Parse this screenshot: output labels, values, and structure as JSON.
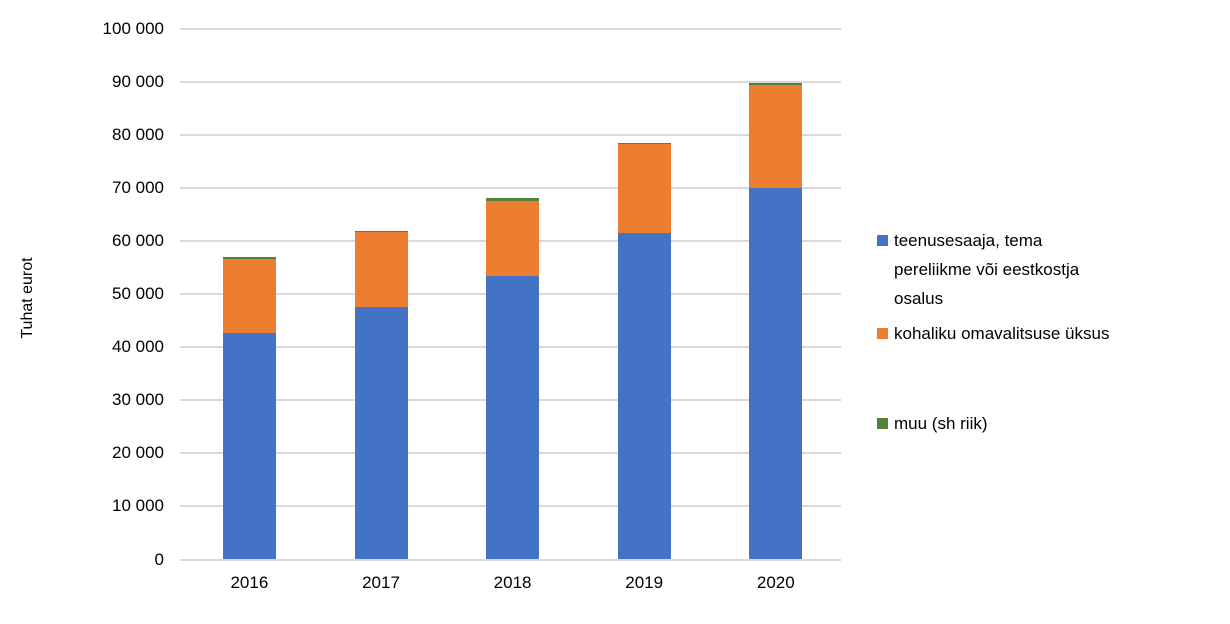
{
  "chart_data": {
    "type": "bar",
    "stacked": true,
    "title": "",
    "xlabel": "",
    "ylabel": "Tuhat eurot",
    "categories": [
      "2016",
      "2017",
      "2018",
      "2019",
      "2020"
    ],
    "series": [
      {
        "name": "teenusesaaja, tema pereliikme või eestkostja osalus",
        "color": "#4472C4",
        "values": [
          42600,
          47600,
          53300,
          61500,
          69900
        ]
      },
      {
        "name": "kohaliku omavalitsuse üksus",
        "color": "#ED7D31",
        "values": [
          14000,
          14000,
          14300,
          16700,
          19400
        ]
      },
      {
        "name": "muu (sh riik)",
        "color": "#548235",
        "values": [
          300,
          300,
          400,
          300,
          500
        ]
      }
    ],
    "ylim": [
      0,
      100000
    ],
    "ytick_step": 10000,
    "ytick_labels": [
      "0",
      "10 000",
      "20 000",
      "30 000",
      "40 000",
      "50 000",
      "60 000",
      "70 000",
      "80 000",
      "90 000",
      "100 000"
    ],
    "grid": true,
    "legend_position": "right",
    "gridline_color": "#D9D9D9",
    "text_color": "#000000"
  }
}
